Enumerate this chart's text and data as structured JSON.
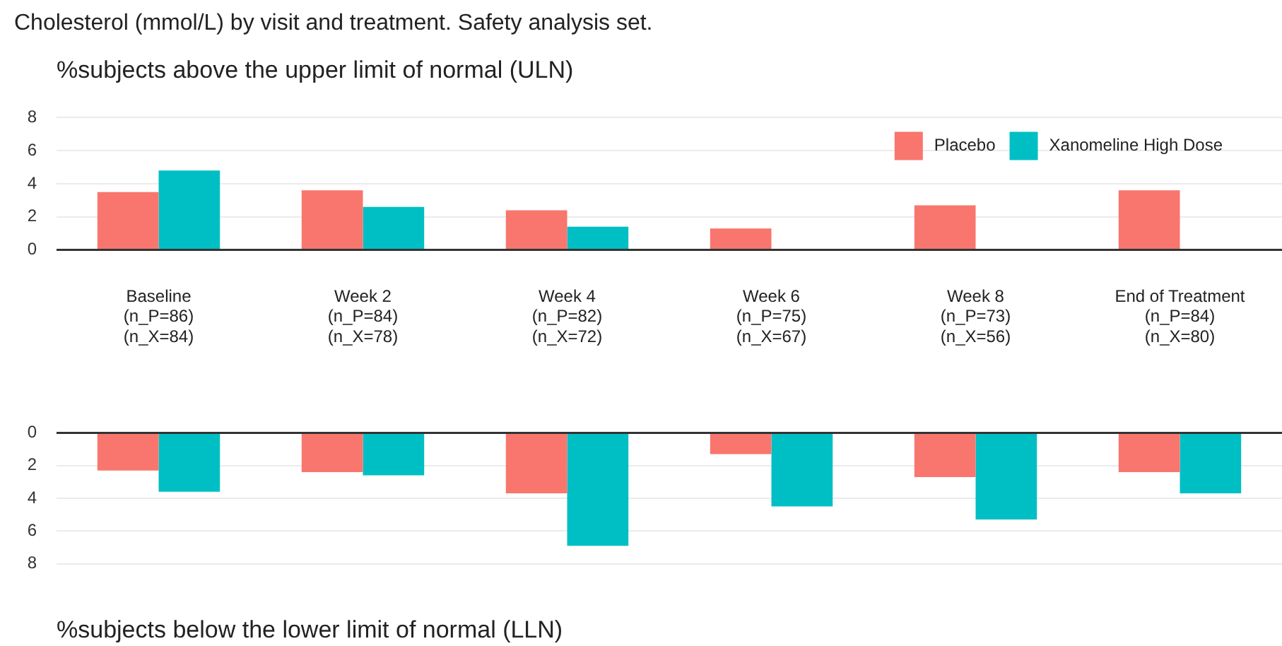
{
  "chart_data": [
    {
      "type": "bar",
      "title": "Cholesterol (mmol/L) by visit and treatment. Safety analysis set.",
      "subtitle": "%subjects above the upper limit of normal (ULN)",
      "categories": [
        "Baseline\n(n_P=86)\n(n_X=84)",
        "Week 2\n(n_P=84)\n(n_X=78)",
        "Week 4\n(n_P=82)\n(n_X=72)",
        "Week 6\n(n_P=75)\n(n_X=67)",
        "Week 8\n(n_P=73)\n(n_X=56)",
        "End of Treatment\n(n_P=84)\n(n_X=80)"
      ],
      "series": [
        {
          "name": "Placebo",
          "color": "#f8766d",
          "values": [
            3.5,
            3.6,
            2.4,
            1.3,
            2.7,
            3.6
          ]
        },
        {
          "name": "Xanomeline High Dose",
          "color": "#00bfc4",
          "values": [
            4.8,
            2.6,
            1.4,
            0,
            0,
            0
          ]
        }
      ],
      "ylim": [
        0,
        8
      ],
      "yticks": [
        0,
        2,
        4,
        6,
        8
      ],
      "grid": "y",
      "legend": "top right"
    },
    {
      "type": "bar",
      "title": "%subjects below the lower limit of normal (LLN)",
      "categories": [
        null,
        null,
        null,
        null,
        null,
        null
      ],
      "series": [
        {
          "color": "#f8766d",
          "values": [
            2.3,
            2.4,
            3.7,
            1.3,
            2.7,
            2.4
          ]
        },
        {
          "color": "#00bfc4",
          "values": [
            3.6,
            2.6,
            6.9,
            4.5,
            5.3,
            3.7
          ]
        }
      ],
      "ylim": [
        8,
        0
      ],
      "yticks": [
        0,
        2,
        4,
        6,
        8
      ],
      "grid": "y",
      "tick_labels": "y",
      "legend": false
    }
  ]
}
